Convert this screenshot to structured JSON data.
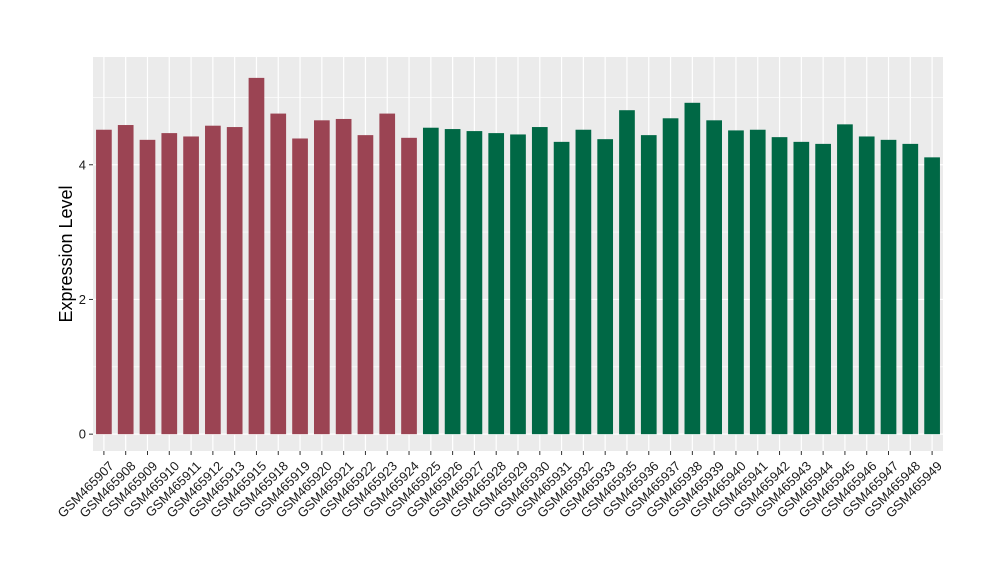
{
  "chart_data": {
    "type": "bar",
    "ylabel": "Expression Level",
    "xlabel": "",
    "ylim": [
      -0.25,
      5.6
    ],
    "yticks": [
      0,
      2,
      4
    ],
    "grid": true,
    "legend": "none",
    "colors": {
      "group1": "#9b4453",
      "group2": "#006845",
      "panel": "#ebebeb",
      "grid": "#ffffff"
    },
    "categories": [
      "GSM465907",
      "GSM465908",
      "GSM465909",
      "GSM465910",
      "GSM465911",
      "GSM465912",
      "GSM465913",
      "GSM465915",
      "GSM465918",
      "GSM465919",
      "GSM465920",
      "GSM465921",
      "GSM465922",
      "GSM465923",
      "GSM465924",
      "GSM465925",
      "GSM465926",
      "GSM465927",
      "GSM465928",
      "GSM465929",
      "GSM465930",
      "GSM465931",
      "GSM465932",
      "GSM465933",
      "GSM465935",
      "GSM465936",
      "GSM465937",
      "GSM465938",
      "GSM465939",
      "GSM465940",
      "GSM465941",
      "GSM465942",
      "GSM465943",
      "GSM465944",
      "GSM465945",
      "GSM465946",
      "GSM465947",
      "GSM465948",
      "GSM465949"
    ],
    "values": [
      4.52,
      4.59,
      4.37,
      4.47,
      4.42,
      4.58,
      4.56,
      5.29,
      4.76,
      4.39,
      4.66,
      4.68,
      4.44,
      4.76,
      4.4,
      4.55,
      4.53,
      4.5,
      4.47,
      4.45,
      4.56,
      4.34,
      4.52,
      4.38,
      4.81,
      4.44,
      4.69,
      4.92,
      4.66,
      4.51,
      4.52,
      4.41,
      4.34,
      4.31,
      4.6,
      4.42,
      4.37,
      4.31,
      4.11
    ],
    "groups": [
      1,
      1,
      1,
      1,
      1,
      1,
      1,
      1,
      1,
      1,
      1,
      1,
      1,
      1,
      1,
      2,
      2,
      2,
      2,
      2,
      2,
      2,
      2,
      2,
      2,
      2,
      2,
      2,
      2,
      2,
      2,
      2,
      2,
      2,
      2,
      2,
      2,
      2,
      2
    ]
  }
}
